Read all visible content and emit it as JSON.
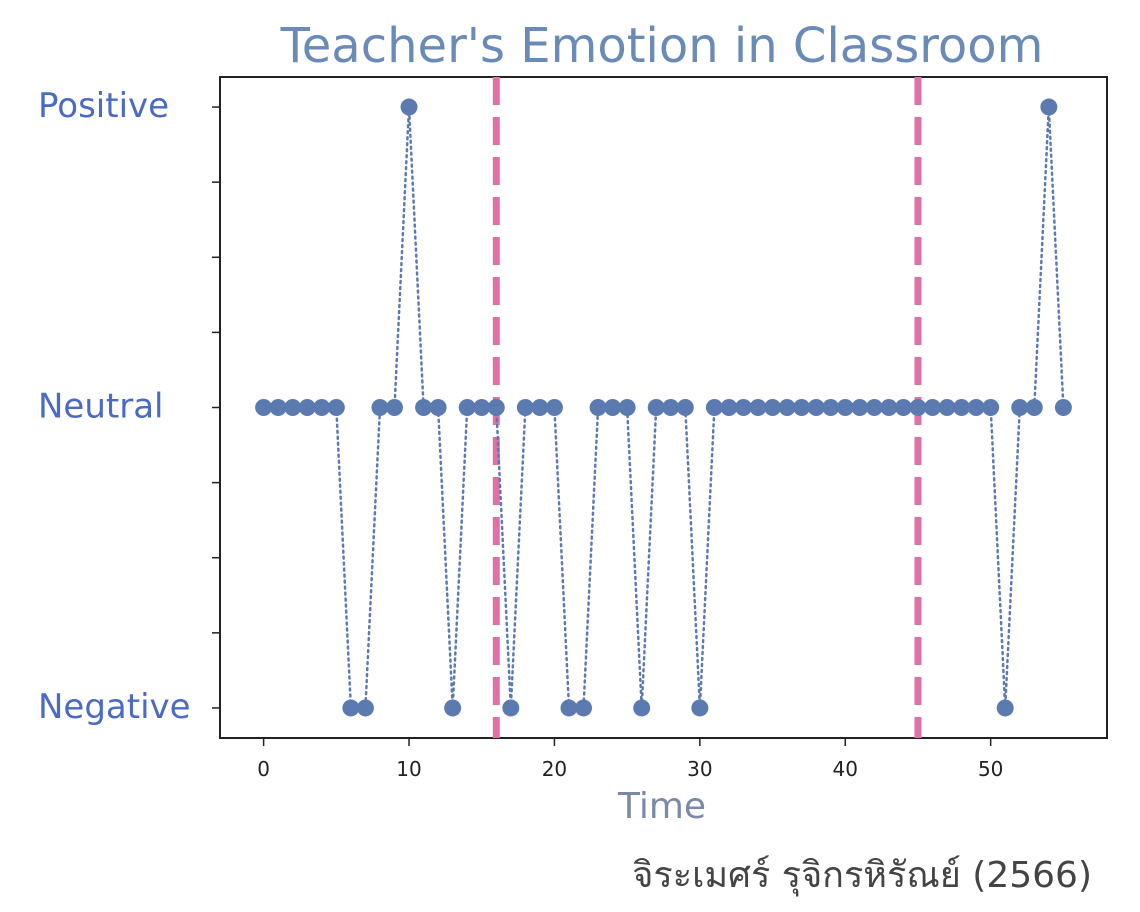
{
  "chart_data": {
    "type": "line",
    "title": "Teacher's Emotion in Classroom",
    "xlabel": "Time",
    "ylabel": "",
    "xlim": [
      -3,
      58
    ],
    "ylim": [
      -1.1,
      1.1
    ],
    "x_ticks": [
      0,
      10,
      20,
      30,
      40,
      50
    ],
    "y_ticks": [
      {
        "value": 1,
        "label": "Positive"
      },
      {
        "value": 0,
        "label": "Neutral"
      },
      {
        "value": -1,
        "label": "Negative"
      }
    ],
    "y_minor_ticks": [
      0.75,
      0.5,
      0.25,
      -0.25,
      -0.5,
      -0.75
    ],
    "grid": false,
    "series": [
      {
        "line_style": "dotted",
        "marker": "circle",
        "color": "#5b7bb0",
        "x": [
          0,
          1,
          2,
          3,
          4,
          5,
          6,
          7,
          8,
          9,
          10,
          11,
          12,
          13,
          14,
          15,
          16,
          17,
          18,
          19,
          20,
          21,
          22,
          23,
          24,
          25,
          26,
          27,
          28,
          29,
          30,
          31,
          32,
          33,
          34,
          35,
          36,
          37,
          38,
          39,
          40,
          41,
          42,
          43,
          44,
          45,
          46,
          47,
          48,
          49,
          50,
          51,
          52,
          53,
          54,
          55
        ],
        "values": [
          0,
          0,
          0,
          0,
          0,
          0,
          -1,
          -1,
          0,
          0,
          1,
          0,
          0,
          -1,
          0,
          0,
          0,
          -1,
          0,
          0,
          0,
          -1,
          -1,
          0,
          0,
          0,
          -1,
          0,
          0,
          0,
          -1,
          0,
          0,
          0,
          0,
          0,
          0,
          0,
          0,
          0,
          0,
          0,
          0,
          0,
          0,
          0,
          0,
          0,
          0,
          0,
          0,
          -1,
          0,
          0,
          1,
          0
        ]
      }
    ],
    "vertical_lines": [
      {
        "x": 16,
        "color": "#e070a8",
        "style": "dashed"
      },
      {
        "x": 45,
        "color": "#e070a8",
        "style": "dashed"
      }
    ],
    "colors": {
      "title": "#6a8ab8",
      "xlabel": "#7a8aa4",
      "ytick_label": "#4a6ac4",
      "series": "#5b7bb0",
      "vline": "#e070a8"
    }
  },
  "credit": "จิระเมศร์ รุจิกรหิรัณย์ (2566)"
}
